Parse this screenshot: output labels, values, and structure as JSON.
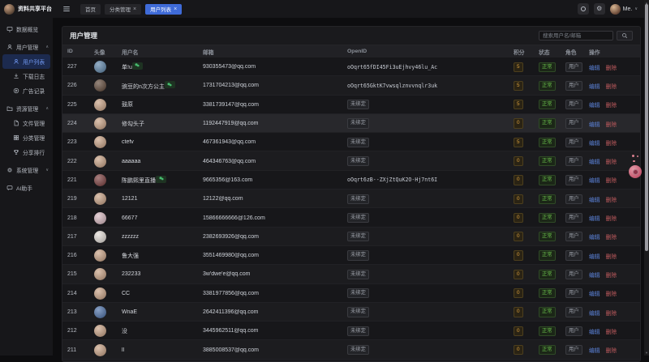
{
  "app": {
    "title": "资料共享平台",
    "user_label": "Me."
  },
  "icons": {
    "close": "×",
    "chevron_up": "∧",
    "chevron_down": "∨",
    "gear": "⚙",
    "arrow_up": "▲",
    "arrow_down": "▼"
  },
  "topbar": {
    "tabs": [
      {
        "label": "首页",
        "active": false,
        "closable": false
      },
      {
        "label": "分类管理",
        "active": false,
        "closable": true
      },
      {
        "label": "用户列表",
        "active": true,
        "closable": true
      }
    ]
  },
  "sidebar": {
    "items": [
      {
        "label": "数据概览",
        "icon": "dashboard-icon",
        "type": "item"
      },
      {
        "label": "用户管理",
        "icon": "user-icon",
        "type": "group",
        "expanded": true,
        "children": [
          {
            "label": "用户列表",
            "icon": "user-list-icon",
            "active": true
          },
          {
            "label": "下载日志",
            "icon": "download-icon",
            "active": false
          },
          {
            "label": "广告记录",
            "icon": "ad-play-icon",
            "active": false
          }
        ]
      },
      {
        "label": "资源管理",
        "icon": "folder-icon",
        "type": "group",
        "expanded": true,
        "children": [
          {
            "label": "文件管理",
            "icon": "file-icon",
            "active": false
          },
          {
            "label": "分类管理",
            "icon": "category-grid-icon",
            "active": false
          },
          {
            "label": "分享排行",
            "icon": "ranking-trophy-icon",
            "active": false
          }
        ]
      },
      {
        "label": "系统管理",
        "icon": "gear-icon",
        "type": "group",
        "expanded": false,
        "children": []
      },
      {
        "label": "AI助手",
        "icon": "chat-icon",
        "type": "item"
      }
    ]
  },
  "page": {
    "title": "用户管理",
    "search_placeholder": "搜索用户名/邮箱"
  },
  "table": {
    "columns": [
      "ID",
      "头像",
      "用户名",
      "邮箱",
      "OpenID",
      "积分",
      "状态",
      "角色",
      "操作"
    ],
    "edit_label": "编辑",
    "delete_label": "删除",
    "unbound_label": "未绑定",
    "rows": [
      {
        "id": 227,
        "username": "单!u",
        "wechat": true,
        "email": "930355473@qq.com",
        "openid": "oOqrt65fDI45Fi3uEjhvy46lu_Ac",
        "points": 5,
        "status": "正常",
        "role": "用户",
        "avatar_color": "#5b83a8"
      },
      {
        "id": 226,
        "username": "豌豆的n次方公主",
        "wechat": true,
        "email": "1731704213@qq.com",
        "openid": "oOqrt65GktK7vwsqlznvvnqlr3uk",
        "points": 5,
        "status": "正常",
        "role": "用户",
        "avatar_color": "#5d4535"
      },
      {
        "id": 225,
        "username": "鼓原",
        "wechat": false,
        "email": "3381739147@qq.com",
        "openid": "",
        "points": 5,
        "status": "正常",
        "role": "用户",
        "avatar_color": "#c9a183"
      },
      {
        "id": 224,
        "username": "修勾头子",
        "wechat": false,
        "email": "1192447919@qq.com",
        "openid": "",
        "points": 0,
        "status": "正常",
        "role": "用户",
        "avatar_color": "#c9a183",
        "highlight": true
      },
      {
        "id": 223,
        "username": "ctefv",
        "wechat": false,
        "email": "467361943@qq.com",
        "openid": "",
        "points": 5,
        "status": "正常",
        "role": "用户",
        "avatar_color": "#c9a183"
      },
      {
        "id": 222,
        "username": "aaaaaa",
        "wechat": false,
        "email": "464346763@qq.com",
        "openid": "",
        "points": 0,
        "status": "正常",
        "role": "用户",
        "avatar_color": "#c9a183"
      },
      {
        "id": 221,
        "username": "陈鹏熙里直播",
        "wechat": true,
        "email": "9665356@163.com",
        "openid": "oOqrt6zB--ZXjZtQuK2O-Hj7nt6I",
        "points": 0,
        "status": "正常",
        "role": "用户",
        "avatar_color": "#7a3b3b"
      },
      {
        "id": 219,
        "username": "12121",
        "wechat": false,
        "email": "12122@qq.com",
        "openid": "",
        "points": 0,
        "status": "正常",
        "role": "用户",
        "avatar_color": "#c9a183"
      },
      {
        "id": 218,
        "username": "66677",
        "wechat": false,
        "email": "15866666666@126.com",
        "openid": "",
        "points": 0,
        "status": "正常",
        "role": "用户",
        "avatar_color": "#d8b8c0"
      },
      {
        "id": 217,
        "username": "zzzzzz",
        "wechat": false,
        "email": "2382693926@qq.com",
        "openid": "",
        "points": 0,
        "status": "正常",
        "role": "用户",
        "avatar_color": "#e4ded8"
      },
      {
        "id": 216,
        "username": "鲁大强",
        "wechat": false,
        "email": "3551469980@qq.com",
        "openid": "",
        "points": 0,
        "status": "正常",
        "role": "用户",
        "avatar_color": "#c9a183"
      },
      {
        "id": 215,
        "username": "232233",
        "wechat": false,
        "email": "3w'dwe'e@qq.com",
        "openid": "",
        "points": 0,
        "status": "正常",
        "role": "用户",
        "avatar_color": "#c9a183"
      },
      {
        "id": 214,
        "username": "CC",
        "wechat": false,
        "email": "3381977856@qq.com",
        "openid": "",
        "points": 0,
        "status": "正常",
        "role": "用户",
        "avatar_color": "#c9a183"
      },
      {
        "id": 213,
        "username": "WnaE",
        "wechat": false,
        "email": "2642411396@qq.com",
        "openid": "",
        "points": 0,
        "status": "正常",
        "role": "用户",
        "avatar_color": "#4a6fa8"
      },
      {
        "id": 212,
        "username": "没",
        "wechat": false,
        "email": "3445962511@qq.com",
        "openid": "",
        "points": 0,
        "status": "正常",
        "role": "用户",
        "avatar_color": "#c9a183"
      },
      {
        "id": 211,
        "username": "ll",
        "wechat": false,
        "email": "3885008537@qq.com",
        "openid": "",
        "points": 0,
        "status": "正常",
        "role": "用户",
        "avatar_color": "#c9a183"
      }
    ]
  }
}
